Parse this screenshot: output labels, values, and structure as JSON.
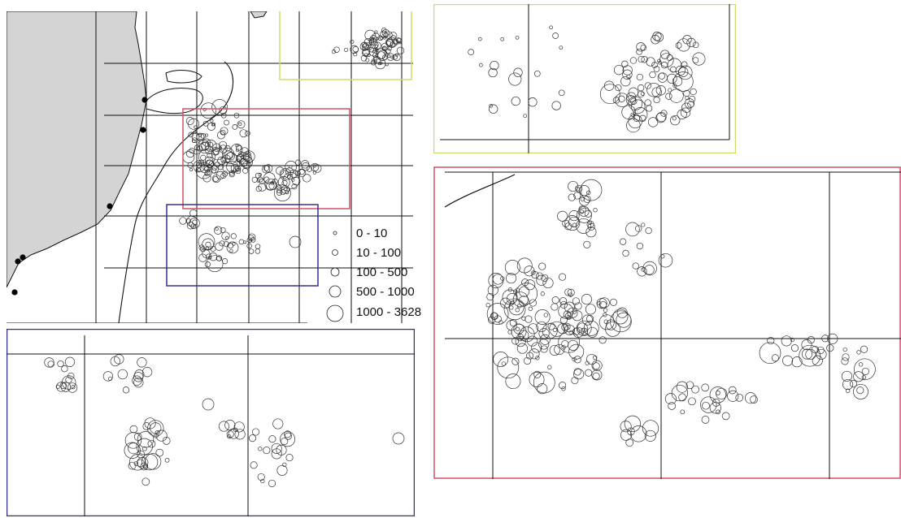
{
  "legend": {
    "classes": [
      {
        "label": "0 - 10"
      },
      {
        "label": "10 - 100"
      },
      {
        "label": "100 - 500"
      },
      {
        "label": "500 - 1000"
      },
      {
        "label": "1000 - 3628"
      }
    ]
  },
  "colors": {
    "land": "#d4d4d4",
    "grid": "#111111",
    "inset_north": "#c8e06a",
    "inset_center": "#d0506a",
    "inset_south": "#30308a"
  }
}
